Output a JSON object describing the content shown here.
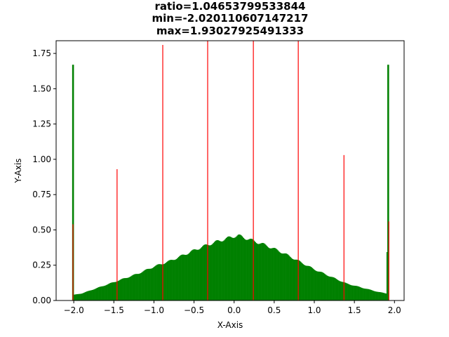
{
  "chart_data": {
    "type": "bar",
    "title": [
      "ratio=1.04653799533844",
      "min=-2.020110607147217",
      "max=1.93027925491333"
    ],
    "xlabel": "X-Axis",
    "ylabel": "Y-Axis",
    "xlim": [
      -2.22,
      2.12
    ],
    "ylim": [
      0,
      1.84
    ],
    "x_ticks": [
      -2.0,
      -1.5,
      -1.0,
      -0.5,
      0.0,
      0.5,
      1.0,
      1.5,
      2.0
    ],
    "x_tick_labels": [
      "−2.0",
      "−1.5",
      "−1.0",
      "−0.5",
      "0.0",
      "0.5",
      "1.0",
      "1.5",
      "2.0"
    ],
    "y_ticks": [
      0.0,
      0.25,
      0.5,
      0.75,
      1.0,
      1.25,
      1.5,
      1.75
    ],
    "y_tick_labels": [
      "0.00",
      "0.25",
      "0.50",
      "0.75",
      "1.00",
      "1.25",
      "1.50",
      "1.75"
    ],
    "grid": false,
    "series": [
      {
        "color": "#008000",
        "kind": "histogram",
        "range": [
          -2.020110607147217,
          1.93027925491333
        ],
        "profile": [
          [
            -2.02,
            1.67
          ],
          [
            -2.0,
            0.04
          ],
          [
            -1.9,
            0.05
          ],
          [
            -1.8,
            0.07
          ],
          [
            -1.6,
            0.11
          ],
          [
            -1.4,
            0.15
          ],
          [
            -1.2,
            0.19
          ],
          [
            -1.0,
            0.24
          ],
          [
            -0.8,
            0.28
          ],
          [
            -0.6,
            0.33
          ],
          [
            -0.4,
            0.38
          ],
          [
            -0.2,
            0.42
          ],
          [
            0.0,
            0.455
          ],
          [
            0.05,
            0.46
          ],
          [
            0.2,
            0.43
          ],
          [
            0.4,
            0.39
          ],
          [
            0.6,
            0.34
          ],
          [
            0.8,
            0.28
          ],
          [
            1.0,
            0.22
          ],
          [
            1.2,
            0.17
          ],
          [
            1.4,
            0.12
          ],
          [
            1.6,
            0.09
          ],
          [
            1.8,
            0.06
          ],
          [
            1.9,
            0.05
          ],
          [
            1.93,
            1.67
          ]
        ]
      },
      {
        "color": "#ff0000",
        "kind": "spikes",
        "x": [
          -2.01,
          -1.46,
          -0.89,
          -0.33,
          0.24,
          0.8,
          1.37,
          1.93
        ],
        "y": [
          0.54,
          0.93,
          1.81,
          1.84,
          1.84,
          1.84,
          1.03,
          0.56
        ]
      }
    ]
  }
}
